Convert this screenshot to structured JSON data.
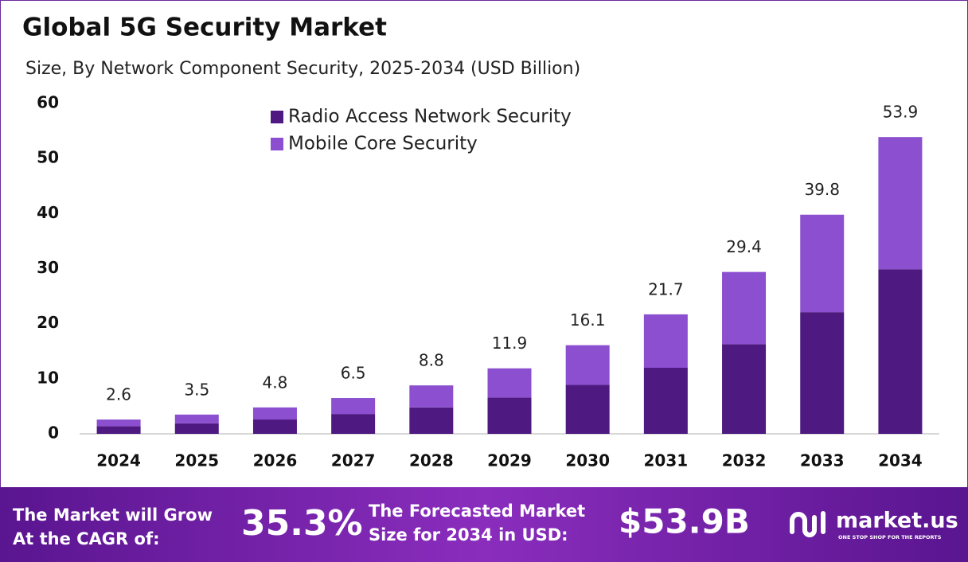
{
  "chart_data": {
    "type": "stacked_bar",
    "title": "Global 5G Security Market",
    "subtitle": "Size, By Network Component Security, 2025-2034 (USD Billion)",
    "categories": [
      "2024",
      "2025",
      "2026",
      "2027",
      "2028",
      "2029",
      "2030",
      "2031",
      "2032",
      "2033",
      "2034"
    ],
    "series": [
      {
        "name": "Radio Access Network Security",
        "color": "#4e1a82",
        "values": [
          1.4,
          1.9,
          2.6,
          3.6,
          4.8,
          6.6,
          8.9,
          12.0,
          16.3,
          22.1,
          29.9
        ]
      },
      {
        "name": "Mobile Core Security",
        "color": "#8b4fcf",
        "values": [
          1.2,
          1.6,
          2.2,
          2.9,
          4.0,
          5.3,
          7.2,
          9.7,
          13.1,
          17.7,
          24.0
        ]
      }
    ],
    "totals": [
      2.6,
      3.5,
      4.8,
      6.5,
      8.8,
      11.9,
      16.1,
      21.7,
      29.4,
      39.8,
      53.9
    ],
    "ylim": [
      0,
      60
    ],
    "yticks": [
      0,
      10,
      20,
      30,
      40,
      50,
      60
    ],
    "grid": false,
    "legend": "upper center"
  },
  "footer": {
    "cagr_text": [
      "The Market will Grow",
      "At the CAGR of:"
    ],
    "cagr": "35.3%",
    "forecast_text": [
      "The Forecasted Market",
      "Size for 2034 in USD:"
    ],
    "forecast": "$53.9B",
    "brand": "market.us",
    "tagline": "ONE STOP SHOP FOR THE REPORTS"
  }
}
